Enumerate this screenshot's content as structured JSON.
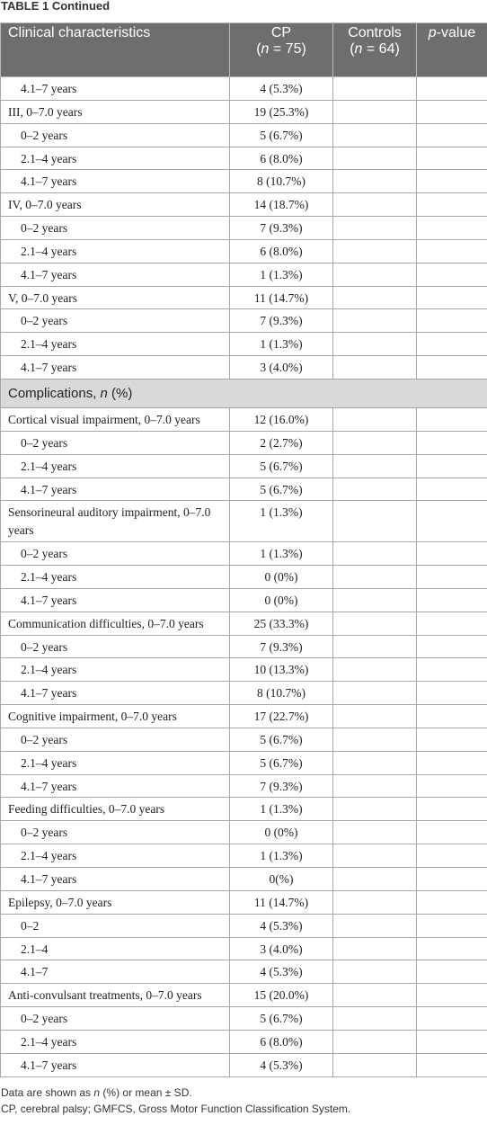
{
  "title": "TABLE 1 Continued",
  "header": [
    {
      "lines": [
        [
          "Clinical characteristics"
        ]
      ]
    },
    {
      "lines": [
        [
          "CP"
        ],
        [
          "(",
          {
            "text": "n",
            "italic": true
          },
          " = 75)"
        ]
      ]
    },
    {
      "lines": [
        [
          "Controls"
        ],
        [
          "(",
          {
            "text": "n",
            "italic": true
          },
          " = 64)"
        ]
      ]
    },
    {
      "lines": [
        [
          {
            "text": "p",
            "italic": true
          },
          "-value"
        ]
      ]
    }
  ],
  "rows": [
    {
      "label": "4.1–7 years",
      "cp": "4 (5.3%)",
      "indent": true
    },
    {
      "label": "III, 0–7.0 years",
      "cp": "19 (25.3%)"
    },
    {
      "label": "0–2 years",
      "cp": "5 (6.7%)",
      "indent": true
    },
    {
      "label": "2.1–4 years",
      "cp": "6 (8.0%)",
      "indent": true
    },
    {
      "label": "4.1–7 years",
      "cp": "8 (10.7%)",
      "indent": true
    },
    {
      "label": "IV, 0–7.0 years",
      "cp": "14 (18.7%)"
    },
    {
      "label": "0–2 years",
      "cp": "7 (9.3%)",
      "indent": true
    },
    {
      "label": "2.1–4 years",
      "cp": "6 (8.0%)",
      "indent": true
    },
    {
      "label": "4.1–7 years",
      "cp": "1 (1.3%)",
      "indent": true
    },
    {
      "label": "V, 0–7.0 years",
      "cp": "11 (14.7%)"
    },
    {
      "label": "0–2 years",
      "cp": "7 (9.3%)",
      "indent": true
    },
    {
      "label": "2.1–4 years",
      "cp": "1 (1.3%)",
      "indent": true
    },
    {
      "label": "4.1–7 years",
      "cp": "3 (4.0%)",
      "indent": true
    },
    {
      "section": [
        "Complications, ",
        {
          "text": "n",
          "italic": true
        },
        " (%)"
      ]
    },
    {
      "label": "Cortical visual impairment, 0–7.0 years",
      "cp": "12 (16.0%)"
    },
    {
      "label": "0–2 years",
      "cp": "2 (2.7%)",
      "indent": true
    },
    {
      "label": "2.1–4 years",
      "cp": "5 (6.7%)",
      "indent": true
    },
    {
      "label": "4.1–7 years",
      "cp": "5 (6.7%)",
      "indent": true
    },
    {
      "label": "Sensorineural auditory impairment, 0–7.0 years",
      "cp": "1 (1.3%)"
    },
    {
      "label": "0–2 years",
      "cp": "1 (1.3%)",
      "indent": true
    },
    {
      "label": "2.1–4 years",
      "cp": "0 (0%)",
      "indent": true
    },
    {
      "label": "4.1–7 years",
      "cp": "0 (0%)",
      "indent": true
    },
    {
      "label": "Communication difficulties, 0–7.0 years",
      "cp": "25 (33.3%)"
    },
    {
      "label": "0–2 years",
      "cp": "7 (9.3%)",
      "indent": true
    },
    {
      "label": "2.1–4 years",
      "cp": "10 (13.3%)",
      "indent": true
    },
    {
      "label": "4.1–7 years",
      "cp": "8 (10.7%)",
      "indent": true
    },
    {
      "label": "Cognitive impairment, 0–7.0 years",
      "cp": "17 (22.7%)"
    },
    {
      "label": "0–2 years",
      "cp": "5 (6.7%)",
      "indent": true
    },
    {
      "label": "2.1–4 years",
      "cp": "5 (6.7%)",
      "indent": true
    },
    {
      "label": "4.1–7 years",
      "cp": "7 (9.3%)",
      "indent": true
    },
    {
      "label": "Feeding difficulties, 0–7.0 years",
      "cp": "1 (1.3%)"
    },
    {
      "label": "0–2 years",
      "cp": "0 (0%)",
      "indent": true
    },
    {
      "label": "2.1–4 years",
      "cp": "1 (1.3%)",
      "indent": true
    },
    {
      "label": "4.1–7 years",
      "cp": "0(%)",
      "indent": true
    },
    {
      "label": "Epilepsy, 0–7.0 years",
      "cp": "11 (14.7%)"
    },
    {
      "label": "0–2",
      "cp": "4 (5.3%)",
      "indent": true
    },
    {
      "label": "2.1–4",
      "cp": "3 (4.0%)",
      "indent": true
    },
    {
      "label": "4.1–7",
      "cp": "4 (5.3%)",
      "indent": true
    },
    {
      "label": "Anti-convulsant treatments, 0–7.0 years",
      "cp": "15 (20.0%)"
    },
    {
      "label": "0–2 years",
      "cp": "5 (6.7%)",
      "indent": true
    },
    {
      "label": "2.1–4 years",
      "cp": "6 (8.0%)",
      "indent": true
    },
    {
      "label": "4.1–7 years",
      "cp": "4 (5.3%)",
      "indent": true
    }
  ],
  "footnotes": [
    [
      "Data are shown as ",
      {
        "text": "n",
        "italic": true
      },
      " (%) or mean ± SD."
    ],
    [
      "CP, cerebral palsy; GMFCS, Gross Motor Function Classification System."
    ]
  ]
}
